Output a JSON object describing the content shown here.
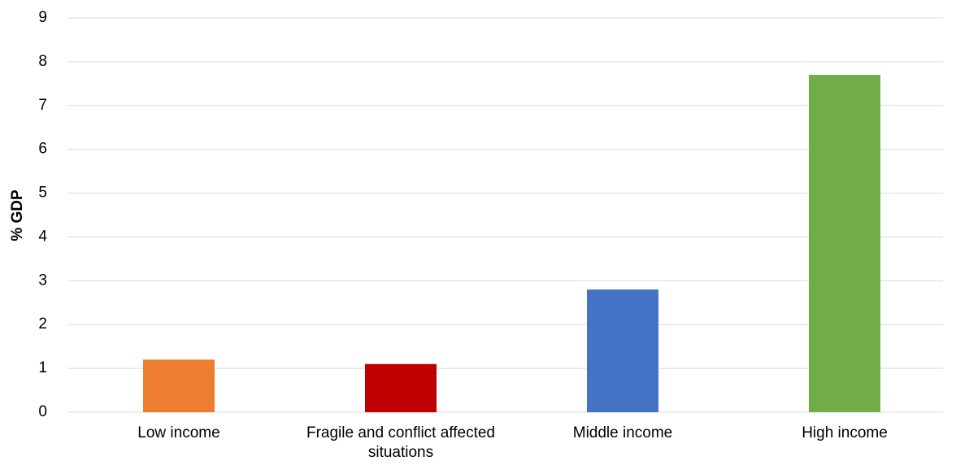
{
  "chart_data": {
    "type": "bar",
    "ylabel": "% GDP",
    "categories": [
      "Low income",
      "Fragile and conflict affected situations",
      "Middle income",
      "High income"
    ],
    "values": [
      1.2,
      1.1,
      2.8,
      7.7
    ],
    "colors": [
      "#ed7d31",
      "#c00000",
      "#4472c4",
      "#70ad47"
    ],
    "ylim": [
      0,
      9
    ],
    "yticks": [
      0,
      1,
      2,
      3,
      4,
      5,
      6,
      7,
      8,
      9
    ],
    "grid": true
  }
}
